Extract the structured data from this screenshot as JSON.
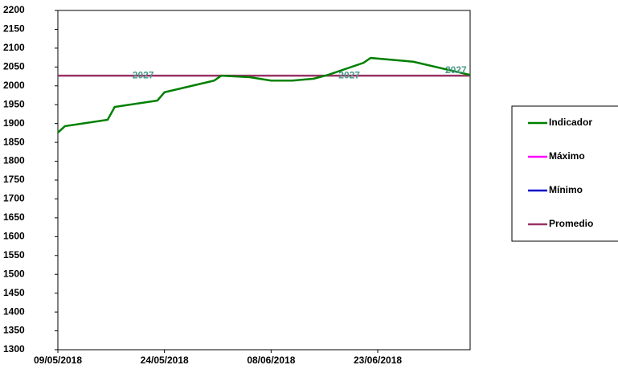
{
  "chart_data": {
    "type": "line",
    "x": [
      0,
      1,
      7,
      8,
      14,
      15,
      22,
      23,
      27,
      30,
      33,
      36,
      38,
      43,
      44,
      50,
      58
    ],
    "xlim": [
      0,
      58
    ],
    "xticks": [
      {
        "value": 0,
        "label": "09/05/2018"
      },
      {
        "value": 15,
        "label": "24/05/2018"
      },
      {
        "value": 30,
        "label": "08/06/2018"
      },
      {
        "value": 45,
        "label": "23/06/2018"
      }
    ],
    "ylim": [
      1300,
      2200
    ],
    "yticks": [
      1300,
      1350,
      1400,
      1450,
      1500,
      1550,
      1600,
      1650,
      1700,
      1750,
      1800,
      1850,
      1900,
      1950,
      2000,
      2050,
      2100,
      2150,
      2200
    ],
    "series": [
      {
        "name": "Indicador",
        "color": "#008000",
        "values": [
          1876,
          1893,
          1910,
          1944,
          1961,
          1983,
          2014,
          2027,
          2023,
          2014,
          2014,
          2019,
          2029,
          2061,
          2074,
          2064,
          2029
        ]
      },
      {
        "name": "Máximo",
        "color": "#ff00ff"
      },
      {
        "name": "Mínimo",
        "color": "#0000cc"
      },
      {
        "name": "Promedio",
        "color": "#993366",
        "values": [
          2027,
          2027,
          2027,
          2027,
          2027,
          2027,
          2027,
          2027,
          2027,
          2027,
          2027,
          2027,
          2027,
          2027,
          2027,
          2027,
          2027
        ]
      }
    ],
    "annotations": [
      {
        "text": "2027",
        "x": 12,
        "y": 2027
      },
      {
        "text": "2027",
        "x": 41,
        "y": 2027
      },
      {
        "text": "2027",
        "x": 56,
        "y": 2040
      }
    ]
  }
}
